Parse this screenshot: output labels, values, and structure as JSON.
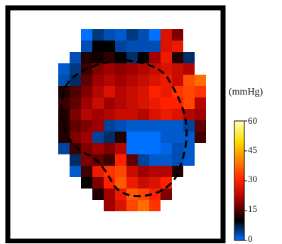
{
  "chart_data": {
    "type": "heatmap",
    "unit_label": "(mmHg)",
    "colorbar": {
      "min": 0,
      "max": 60,
      "ticks": [
        "60",
        "45",
        "30",
        "15",
        "0"
      ],
      "colormap": [
        "#0070ff",
        "#000000",
        "#a00000",
        "#ff2000",
        "#ff8000",
        "#ffe000",
        "#ffffc0"
      ]
    },
    "grid_size": [
      17,
      17
    ],
    "cell_values": [
      [
        null,
        null,
        null,
        null,
        null,
        null,
        null,
        null,
        null,
        null,
        null,
        null,
        null,
        null,
        null,
        null,
        null
      ],
      [
        null,
        null,
        null,
        null,
        null,
        0,
        5,
        3,
        2,
        5,
        3,
        0,
        26,
        18,
        null,
        null,
        null
      ],
      [
        null,
        null,
        null,
        null,
        null,
        3,
        10,
        10,
        4,
        3,
        3,
        3,
        26,
        28,
        null,
        null,
        null
      ],
      [
        null,
        null,
        null,
        null,
        3,
        12,
        11,
        13,
        10,
        6,
        10,
        20,
        28,
        12,
        6,
        null,
        null
      ],
      [
        null,
        null,
        null,
        2,
        5,
        14,
        18,
        20,
        19,
        20,
        22,
        24,
        26,
        24,
        22,
        null,
        null
      ],
      [
        null,
        null,
        null,
        3,
        6,
        16,
        20,
        22,
        20,
        22,
        24,
        26,
        28,
        24,
        35,
        38,
        null
      ],
      [
        null,
        null,
        null,
        12,
        15,
        18,
        22,
        26,
        22,
        24,
        26,
        30,
        28,
        32,
        34,
        32,
        null
      ],
      [
        null,
        null,
        null,
        14,
        16,
        20,
        24,
        20,
        22,
        24,
        26,
        28,
        30,
        30,
        34,
        22,
        null
      ],
      [
        null,
        null,
        null,
        12,
        18,
        22,
        20,
        22,
        24,
        24,
        22,
        26,
        28,
        26,
        22,
        20,
        null
      ],
      [
        null,
        null,
        null,
        12,
        16,
        18,
        20,
        4,
        3,
        2,
        2,
        2,
        2,
        2,
        4,
        16,
        null
      ],
      [
        null,
        null,
        null,
        12,
        18,
        20,
        4,
        6,
        12,
        0,
        0,
        0,
        2,
        2,
        2,
        14,
        null
      ],
      [
        null,
        null,
        null,
        4,
        14,
        18,
        20,
        18,
        22,
        0,
        0,
        0,
        1,
        3,
        2,
        null,
        null
      ],
      [
        null,
        null,
        null,
        null,
        6,
        18,
        16,
        14,
        30,
        16,
        4,
        2,
        2,
        3,
        2,
        null,
        null
      ],
      [
        null,
        null,
        null,
        null,
        2,
        14,
        28,
        32,
        34,
        24,
        20,
        22,
        22,
        12,
        null,
        null,
        null
      ],
      [
        null,
        null,
        null,
        null,
        null,
        10,
        18,
        30,
        36,
        28,
        24,
        26,
        30,
        null,
        null,
        null,
        null
      ],
      [
        null,
        null,
        null,
        null,
        null,
        null,
        12,
        20,
        28,
        36,
        34,
        30,
        18,
        null,
        null,
        null,
        null
      ],
      [
        null,
        null,
        null,
        null,
        null,
        null,
        null,
        20,
        26,
        34,
        38,
        32,
        null,
        null,
        null,
        null,
        null
      ]
    ]
  }
}
